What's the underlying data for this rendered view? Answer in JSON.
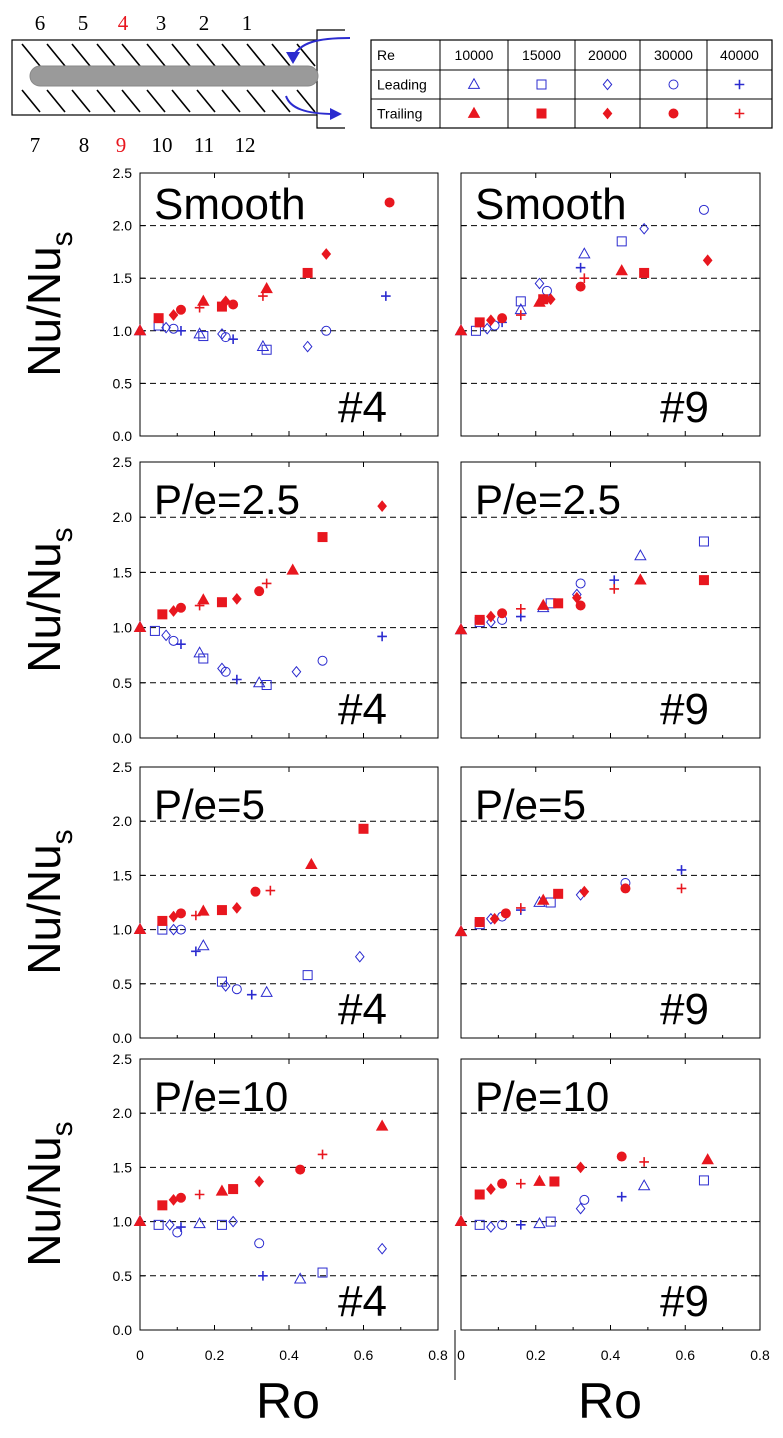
{
  "diagram": {
    "top_numbers": [
      "6",
      "5",
      "4",
      "3",
      "2",
      "1"
    ],
    "bottom_numbers": [
      "7",
      "8",
      "9",
      "10",
      "11",
      "12"
    ],
    "highlight_numbers": [
      "4",
      "9"
    ],
    "highlight_color": "#e8171f"
  },
  "legend": {
    "header": "Re",
    "re_values": [
      "10000",
      "15000",
      "20000",
      "30000",
      "40000"
    ],
    "rows": [
      {
        "label": "Leading",
        "color": "#2b2bcf",
        "markers": [
          "triangle-open",
          "square-open",
          "diamond-open",
          "circle-open",
          "plus"
        ]
      },
      {
        "label": "Trailing",
        "color": "#e8171f",
        "markers": [
          "triangle-filled",
          "square-filled",
          "diamond-filled",
          "circle-filled",
          "plus"
        ]
      }
    ]
  },
  "axes": {
    "ylabel": "Nu/Nu",
    "ylabel_sub": "s",
    "xlabel": "Ro",
    "yticks": [
      "0.0",
      "0.5",
      "1.0",
      "1.5",
      "2.0",
      "2.5"
    ],
    "xticks": [
      "0",
      "0.2",
      "0.4",
      "0.6",
      "0.8"
    ]
  },
  "colors": {
    "leading": "#2b2bcf",
    "trailing": "#e8171f",
    "grid": "#000000"
  },
  "chart_data": [
    {
      "type": "scatter",
      "title": "Smooth",
      "annotation": "#4",
      "xlim": [
        0,
        0.8
      ],
      "ylim": [
        0,
        2.5
      ],
      "grid": "horizontal dashed",
      "series": [
        {
          "name": "Leading",
          "points": [
            [
              0.0,
              1.0
            ],
            [
              0.05,
              1.05
            ],
            [
              0.07,
              1.03
            ],
            [
              0.09,
              1.02
            ],
            [
              0.11,
              1.0
            ],
            [
              0.16,
              0.97
            ],
            [
              0.17,
              0.95
            ],
            [
              0.22,
              0.97
            ],
            [
              0.23,
              0.94
            ],
            [
              0.25,
              0.92
            ],
            [
              0.33,
              0.85
            ],
            [
              0.34,
              0.82
            ],
            [
              0.45,
              0.85
            ],
            [
              0.5,
              1.0
            ],
            [
              0.66,
              1.33
            ]
          ]
        },
        {
          "name": "Trailing",
          "points": [
            [
              0.0,
              1.0
            ],
            [
              0.05,
              1.12
            ],
            [
              0.09,
              1.15
            ],
            [
              0.11,
              1.2
            ],
            [
              0.16,
              1.22
            ],
            [
              0.17,
              1.28
            ],
            [
              0.22,
              1.23
            ],
            [
              0.23,
              1.28
            ],
            [
              0.25,
              1.25
            ],
            [
              0.33,
              1.33
            ],
            [
              0.34,
              1.4
            ],
            [
              0.45,
              1.55
            ],
            [
              0.5,
              1.73
            ],
            [
              0.67,
              2.22
            ]
          ]
        }
      ]
    },
    {
      "type": "scatter",
      "title": "Smooth",
      "annotation": "#9",
      "xlim": [
        0,
        0.8
      ],
      "ylim": [
        0,
        2.5
      ],
      "grid": "horizontal dashed",
      "series": [
        {
          "name": "Leading",
          "points": [
            [
              0.0,
              1.0
            ],
            [
              0.04,
              1.0
            ],
            [
              0.07,
              1.02
            ],
            [
              0.09,
              1.05
            ],
            [
              0.11,
              1.08
            ],
            [
              0.16,
              1.2
            ],
            [
              0.16,
              1.28
            ],
            [
              0.21,
              1.45
            ],
            [
              0.23,
              1.38
            ],
            [
              0.32,
              1.6
            ],
            [
              0.33,
              1.73
            ],
            [
              0.43,
              1.85
            ],
            [
              0.49,
              1.97
            ],
            [
              0.65,
              2.15
            ]
          ]
        },
        {
          "name": "Trailing",
          "points": [
            [
              0.0,
              1.0
            ],
            [
              0.05,
              1.08
            ],
            [
              0.08,
              1.1
            ],
            [
              0.11,
              1.12
            ],
            [
              0.16,
              1.15
            ],
            [
              0.21,
              1.27
            ],
            [
              0.22,
              1.3
            ],
            [
              0.24,
              1.3
            ],
            [
              0.32,
              1.42
            ],
            [
              0.33,
              1.5
            ],
            [
              0.43,
              1.57
            ],
            [
              0.49,
              1.55
            ],
            [
              0.66,
              1.67
            ]
          ]
        }
      ]
    },
    {
      "type": "scatter",
      "title": "P/e=2.5",
      "annotation": "#4",
      "xlim": [
        0,
        0.8
      ],
      "ylim": [
        0,
        2.5
      ],
      "grid": "horizontal dashed",
      "series": [
        {
          "name": "Leading",
          "points": [
            [
              0.0,
              1.0
            ],
            [
              0.04,
              0.97
            ],
            [
              0.07,
              0.93
            ],
            [
              0.09,
              0.88
            ],
            [
              0.11,
              0.85
            ],
            [
              0.16,
              0.77
            ],
            [
              0.17,
              0.72
            ],
            [
              0.22,
              0.63
            ],
            [
              0.23,
              0.6
            ],
            [
              0.26,
              0.53
            ],
            [
              0.32,
              0.5
            ],
            [
              0.34,
              0.48
            ],
            [
              0.42,
              0.6
            ],
            [
              0.49,
              0.7
            ],
            [
              0.65,
              0.92
            ]
          ]
        },
        {
          "name": "Trailing",
          "points": [
            [
              0.0,
              1.0
            ],
            [
              0.06,
              1.12
            ],
            [
              0.09,
              1.15
            ],
            [
              0.11,
              1.18
            ],
            [
              0.16,
              1.2
            ],
            [
              0.17,
              1.25
            ],
            [
              0.22,
              1.23
            ],
            [
              0.26,
              1.26
            ],
            [
              0.32,
              1.33
            ],
            [
              0.34,
              1.4
            ],
            [
              0.41,
              1.52
            ],
            [
              0.49,
              1.82
            ],
            [
              0.65,
              2.1
            ]
          ]
        }
      ]
    },
    {
      "type": "scatter",
      "title": "P/e=2.5",
      "annotation": "#9",
      "xlim": [
        0,
        0.8
      ],
      "ylim": [
        0,
        2.5
      ],
      "grid": "horizontal dashed",
      "series": [
        {
          "name": "Leading",
          "points": [
            [
              0.0,
              0.98
            ],
            [
              0.05,
              1.05
            ],
            [
              0.08,
              1.05
            ],
            [
              0.11,
              1.07
            ],
            [
              0.16,
              1.1
            ],
            [
              0.22,
              1.18
            ],
            [
              0.24,
              1.22
            ],
            [
              0.31,
              1.3
            ],
            [
              0.32,
              1.4
            ],
            [
              0.41,
              1.43
            ],
            [
              0.48,
              1.65
            ],
            [
              0.65,
              1.78
            ]
          ]
        },
        {
          "name": "Trailing",
          "points": [
            [
              0.0,
              0.98
            ],
            [
              0.05,
              1.07
            ],
            [
              0.08,
              1.1
            ],
            [
              0.11,
              1.13
            ],
            [
              0.16,
              1.17
            ],
            [
              0.22,
              1.2
            ],
            [
              0.26,
              1.22
            ],
            [
              0.31,
              1.27
            ],
            [
              0.32,
              1.2
            ],
            [
              0.41,
              1.35
            ],
            [
              0.48,
              1.43
            ],
            [
              0.65,
              1.43
            ]
          ]
        }
      ]
    },
    {
      "type": "scatter",
      "title": "P/e=5",
      "annotation": "#4",
      "xlim": [
        0,
        0.8
      ],
      "ylim": [
        0,
        2.5
      ],
      "grid": "horizontal dashed",
      "series": [
        {
          "name": "Leading",
          "points": [
            [
              0.0,
              1.0
            ],
            [
              0.06,
              1.0
            ],
            [
              0.09,
              1.0
            ],
            [
              0.11,
              1.0
            ],
            [
              0.15,
              0.8
            ],
            [
              0.17,
              0.85
            ],
            [
              0.22,
              0.52
            ],
            [
              0.23,
              0.48
            ],
            [
              0.26,
              0.45
            ],
            [
              0.3,
              0.4
            ],
            [
              0.34,
              0.42
            ],
            [
              0.45,
              0.58
            ],
            [
              0.59,
              0.75
            ]
          ]
        },
        {
          "name": "Trailing",
          "points": [
            [
              0.0,
              1.0
            ],
            [
              0.06,
              1.08
            ],
            [
              0.09,
              1.12
            ],
            [
              0.11,
              1.15
            ],
            [
              0.15,
              1.13
            ],
            [
              0.17,
              1.17
            ],
            [
              0.22,
              1.18
            ],
            [
              0.26,
              1.2
            ],
            [
              0.31,
              1.35
            ],
            [
              0.35,
              1.36
            ],
            [
              0.46,
              1.6
            ],
            [
              0.6,
              1.93
            ]
          ]
        }
      ]
    },
    {
      "type": "scatter",
      "title": "P/e=5",
      "annotation": "#9",
      "xlim": [
        0,
        0.8
      ],
      "ylim": [
        0,
        2.5
      ],
      "grid": "horizontal dashed",
      "series": [
        {
          "name": "Leading",
          "points": [
            [
              0.0,
              0.98
            ],
            [
              0.05,
              1.05
            ],
            [
              0.08,
              1.1
            ],
            [
              0.11,
              1.12
            ],
            [
              0.16,
              1.18
            ],
            [
              0.21,
              1.25
            ],
            [
              0.24,
              1.25
            ],
            [
              0.32,
              1.32
            ],
            [
              0.44,
              1.43
            ],
            [
              0.59,
              1.55
            ]
          ]
        },
        {
          "name": "Trailing",
          "points": [
            [
              0.0,
              0.98
            ],
            [
              0.05,
              1.07
            ],
            [
              0.09,
              1.1
            ],
            [
              0.12,
              1.15
            ],
            [
              0.16,
              1.2
            ],
            [
              0.22,
              1.27
            ],
            [
              0.26,
              1.33
            ],
            [
              0.33,
              1.35
            ],
            [
              0.44,
              1.38
            ],
            [
              0.59,
              1.38
            ]
          ]
        }
      ]
    },
    {
      "type": "scatter",
      "title": "P/e=10",
      "annotation": "#4",
      "xlim": [
        0,
        0.8
      ],
      "ylim": [
        0,
        2.5
      ],
      "grid": "horizontal dashed",
      "series": [
        {
          "name": "Leading",
          "points": [
            [
              0.0,
              1.0
            ],
            [
              0.05,
              0.97
            ],
            [
              0.08,
              0.97
            ],
            [
              0.1,
              0.9
            ],
            [
              0.11,
              0.95
            ],
            [
              0.16,
              0.98
            ],
            [
              0.22,
              0.97
            ],
            [
              0.25,
              1.0
            ],
            [
              0.32,
              0.8
            ],
            [
              0.33,
              0.5
            ],
            [
              0.43,
              0.47
            ],
            [
              0.49,
              0.53
            ],
            [
              0.65,
              0.75
            ]
          ]
        },
        {
          "name": "Trailing",
          "points": [
            [
              0.0,
              1.0
            ],
            [
              0.06,
              1.15
            ],
            [
              0.09,
              1.2
            ],
            [
              0.11,
              1.22
            ],
            [
              0.16,
              1.25
            ],
            [
              0.22,
              1.28
            ],
            [
              0.25,
              1.3
            ],
            [
              0.32,
              1.37
            ],
            [
              0.43,
              1.48
            ],
            [
              0.49,
              1.62
            ],
            [
              0.65,
              1.88
            ]
          ]
        }
      ]
    },
    {
      "type": "scatter",
      "title": "P/e=10",
      "annotation": "#9",
      "xlim": [
        0,
        0.8
      ],
      "ylim": [
        0,
        2.5
      ],
      "grid": "horizontal dashed",
      "series": [
        {
          "name": "Leading",
          "points": [
            [
              0.0,
              1.0
            ],
            [
              0.05,
              0.97
            ],
            [
              0.08,
              0.95
            ],
            [
              0.11,
              0.97
            ],
            [
              0.16,
              0.97
            ],
            [
              0.21,
              0.98
            ],
            [
              0.24,
              1.0
            ],
            [
              0.32,
              1.12
            ],
            [
              0.33,
              1.2
            ],
            [
              0.43,
              1.23
            ],
            [
              0.49,
              1.33
            ],
            [
              0.65,
              1.38
            ]
          ]
        },
        {
          "name": "Trailing",
          "points": [
            [
              0.0,
              1.0
            ],
            [
              0.05,
              1.25
            ],
            [
              0.08,
              1.3
            ],
            [
              0.11,
              1.35
            ],
            [
              0.16,
              1.35
            ],
            [
              0.21,
              1.37
            ],
            [
              0.25,
              1.37
            ],
            [
              0.32,
              1.5
            ],
            [
              0.43,
              1.6
            ],
            [
              0.49,
              1.55
            ],
            [
              0.66,
              1.57
            ]
          ]
        }
      ]
    }
  ]
}
